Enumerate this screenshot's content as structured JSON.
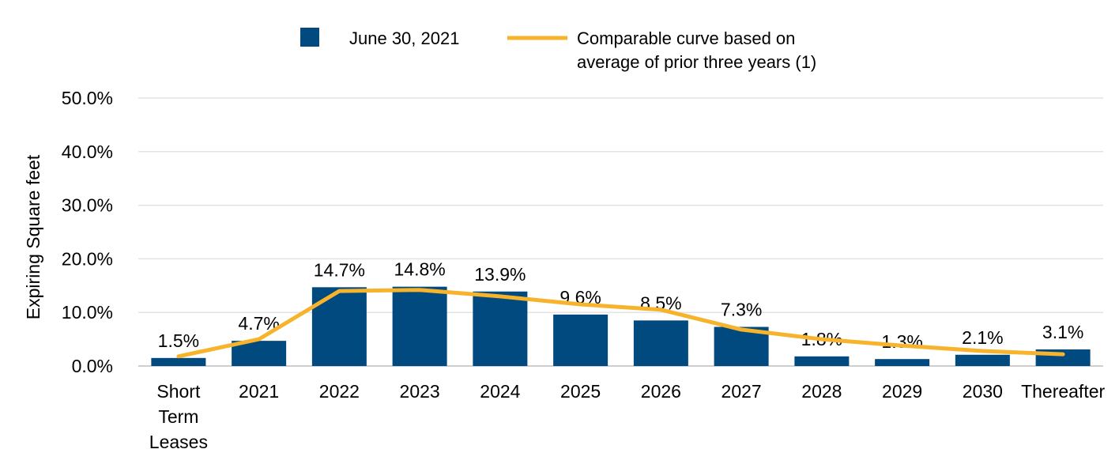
{
  "chart_data": {
    "type": "bar",
    "title": "",
    "xlabel": "",
    "ylabel": "Expiring Square feet",
    "ylim": [
      0,
      50
    ],
    "yticks": [
      "0.0%",
      "10.0%",
      "20.0%",
      "30.0%",
      "40.0%",
      "50.0%"
    ],
    "grid": true,
    "legend_position": "top-center",
    "categories": [
      [
        "Short",
        "Term",
        "Leases"
      ],
      [
        "2021"
      ],
      [
        "2022"
      ],
      [
        "2023"
      ],
      [
        "2024"
      ],
      [
        "2025"
      ],
      [
        "2026"
      ],
      [
        "2027"
      ],
      [
        "2028"
      ],
      [
        "2029"
      ],
      [
        "2030"
      ],
      [
        "Thereafter"
      ]
    ],
    "series": [
      {
        "name": "June 30, 2021",
        "type": "bar",
        "color": "#004a7f",
        "values": [
          1.5,
          4.7,
          14.7,
          14.8,
          13.9,
          9.6,
          8.5,
          7.3,
          1.8,
          1.3,
          2.1,
          3.1
        ],
        "labels": [
          "1.5%",
          "4.7%",
          "14.7%",
          "14.8%",
          "13.9%",
          "9.6%",
          "8.5%",
          "7.3%",
          "1.8%",
          "1.3%",
          "2.1%",
          "3.1%"
        ]
      },
      {
        "name_lines": [
          "Comparable curve based on",
          "average of prior three years (1)"
        ],
        "type": "line",
        "color": "#f7b32b",
        "values": [
          1.8,
          5.0,
          14.0,
          14.2,
          13.0,
          11.5,
          10.5,
          6.8,
          5.0,
          3.8,
          2.8,
          2.2
        ]
      }
    ]
  }
}
